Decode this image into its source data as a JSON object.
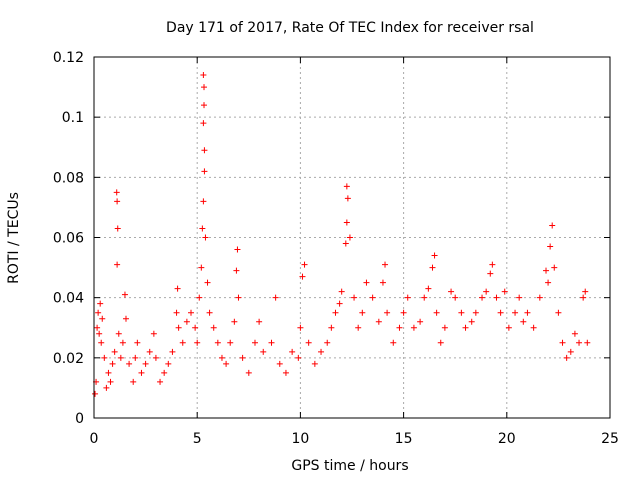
{
  "chart_data": {
    "type": "scatter",
    "title": "Day 171 of 2017, Rate Of TEC Index for receiver rsal",
    "xlabel": "GPS time / hours",
    "ylabel": "ROTI / TECUs",
    "xlim": [
      0,
      25
    ],
    "ylim": [
      0,
      0.12
    ],
    "x_ticks": [
      "0",
      "5",
      "10",
      "15",
      "20",
      "25"
    ],
    "y_ticks": [
      "0",
      "0.02",
      "0.04",
      "0.06",
      "0.08",
      "0.1",
      "0.12"
    ],
    "grid": true,
    "marker": "+",
    "series": [
      {
        "color": "#ff0000",
        "points": [
          [
            0.05,
            0.008
          ],
          [
            0.1,
            0.012
          ],
          [
            0.15,
            0.03
          ],
          [
            0.2,
            0.035
          ],
          [
            0.25,
            0.028
          ],
          [
            0.3,
            0.038
          ],
          [
            0.35,
            0.025
          ],
          [
            0.4,
            0.033
          ],
          [
            0.5,
            0.02
          ],
          [
            0.6,
            0.01
          ],
          [
            0.7,
            0.015
          ],
          [
            0.8,
            0.012
          ],
          [
            0.9,
            0.018
          ],
          [
            1.0,
            0.022
          ],
          [
            1.1,
            0.075
          ],
          [
            1.12,
            0.072
          ],
          [
            1.15,
            0.063
          ],
          [
            1.12,
            0.051
          ],
          [
            1.2,
            0.028
          ],
          [
            1.3,
            0.02
          ],
          [
            1.4,
            0.025
          ],
          [
            1.5,
            0.041
          ],
          [
            1.55,
            0.033
          ],
          [
            1.7,
            0.018
          ],
          [
            1.9,
            0.012
          ],
          [
            2.0,
            0.02
          ],
          [
            2.1,
            0.025
          ],
          [
            2.3,
            0.015
          ],
          [
            2.5,
            0.018
          ],
          [
            2.7,
            0.022
          ],
          [
            2.9,
            0.028
          ],
          [
            3.0,
            0.02
          ],
          [
            3.2,
            0.012
          ],
          [
            3.4,
            0.015
          ],
          [
            3.6,
            0.018
          ],
          [
            3.8,
            0.022
          ],
          [
            4.0,
            0.035
          ],
          [
            4.05,
            0.043
          ],
          [
            4.1,
            0.03
          ],
          [
            4.3,
            0.025
          ],
          [
            4.5,
            0.032
          ],
          [
            4.7,
            0.035
          ],
          [
            4.9,
            0.03
          ],
          [
            5.0,
            0.025
          ],
          [
            5.1,
            0.04
          ],
          [
            5.2,
            0.05
          ],
          [
            5.25,
            0.063
          ],
          [
            5.3,
            0.072
          ],
          [
            5.35,
            0.082
          ],
          [
            5.35,
            0.089
          ],
          [
            5.3,
            0.098
          ],
          [
            5.33,
            0.104
          ],
          [
            5.33,
            0.11
          ],
          [
            5.3,
            0.114
          ],
          [
            5.4,
            0.06
          ],
          [
            5.5,
            0.045
          ],
          [
            5.6,
            0.035
          ],
          [
            5.8,
            0.03
          ],
          [
            6.0,
            0.025
          ],
          [
            6.2,
            0.02
          ],
          [
            6.4,
            0.018
          ],
          [
            6.6,
            0.025
          ],
          [
            6.8,
            0.032
          ],
          [
            6.9,
            0.049
          ],
          [
            6.95,
            0.056
          ],
          [
            7.0,
            0.04
          ],
          [
            7.2,
            0.02
          ],
          [
            7.5,
            0.015
          ],
          [
            7.8,
            0.025
          ],
          [
            8.0,
            0.032
          ],
          [
            8.2,
            0.022
          ],
          [
            8.6,
            0.025
          ],
          [
            8.8,
            0.04
          ],
          [
            9.0,
            0.018
          ],
          [
            9.3,
            0.015
          ],
          [
            9.6,
            0.022
          ],
          [
            9.9,
            0.02
          ],
          [
            10.0,
            0.03
          ],
          [
            10.1,
            0.047
          ],
          [
            10.2,
            0.051
          ],
          [
            10.4,
            0.025
          ],
          [
            10.7,
            0.018
          ],
          [
            11.0,
            0.022
          ],
          [
            11.3,
            0.025
          ],
          [
            11.5,
            0.03
          ],
          [
            11.7,
            0.035
          ],
          [
            11.9,
            0.038
          ],
          [
            12.0,
            0.042
          ],
          [
            12.2,
            0.058
          ],
          [
            12.25,
            0.065
          ],
          [
            12.3,
            0.073
          ],
          [
            12.25,
            0.077
          ],
          [
            12.4,
            0.06
          ],
          [
            12.6,
            0.04
          ],
          [
            12.8,
            0.03
          ],
          [
            13.0,
            0.035
          ],
          [
            13.2,
            0.045
          ],
          [
            13.5,
            0.04
          ],
          [
            13.8,
            0.032
          ],
          [
            14.0,
            0.045
          ],
          [
            14.1,
            0.051
          ],
          [
            14.2,
            0.035
          ],
          [
            14.5,
            0.025
          ],
          [
            14.8,
            0.03
          ],
          [
            15.0,
            0.035
          ],
          [
            15.2,
            0.04
          ],
          [
            15.5,
            0.03
          ],
          [
            15.8,
            0.032
          ],
          [
            16.0,
            0.04
          ],
          [
            16.2,
            0.043
          ],
          [
            16.4,
            0.05
          ],
          [
            16.5,
            0.054
          ],
          [
            16.6,
            0.035
          ],
          [
            16.8,
            0.025
          ],
          [
            17.0,
            0.03
          ],
          [
            17.3,
            0.042
          ],
          [
            17.5,
            0.04
          ],
          [
            17.8,
            0.035
          ],
          [
            18.0,
            0.03
          ],
          [
            18.3,
            0.032
          ],
          [
            18.5,
            0.035
          ],
          [
            18.8,
            0.04
          ],
          [
            19.0,
            0.042
          ],
          [
            19.2,
            0.048
          ],
          [
            19.3,
            0.051
          ],
          [
            19.5,
            0.04
          ],
          [
            19.7,
            0.035
          ],
          [
            19.9,
            0.042
          ],
          [
            20.1,
            0.03
          ],
          [
            20.4,
            0.035
          ],
          [
            20.6,
            0.04
          ],
          [
            20.8,
            0.032
          ],
          [
            21.0,
            0.035
          ],
          [
            21.3,
            0.03
          ],
          [
            21.6,
            0.04
          ],
          [
            21.9,
            0.049
          ],
          [
            22.0,
            0.045
          ],
          [
            22.1,
            0.057
          ],
          [
            22.2,
            0.064
          ],
          [
            22.3,
            0.05
          ],
          [
            22.5,
            0.035
          ],
          [
            22.7,
            0.025
          ],
          [
            22.9,
            0.02
          ],
          [
            23.1,
            0.022
          ],
          [
            23.3,
            0.028
          ],
          [
            23.5,
            0.025
          ],
          [
            23.7,
            0.04
          ],
          [
            23.8,
            0.042
          ],
          [
            23.9,
            0.025
          ]
        ]
      }
    ]
  }
}
